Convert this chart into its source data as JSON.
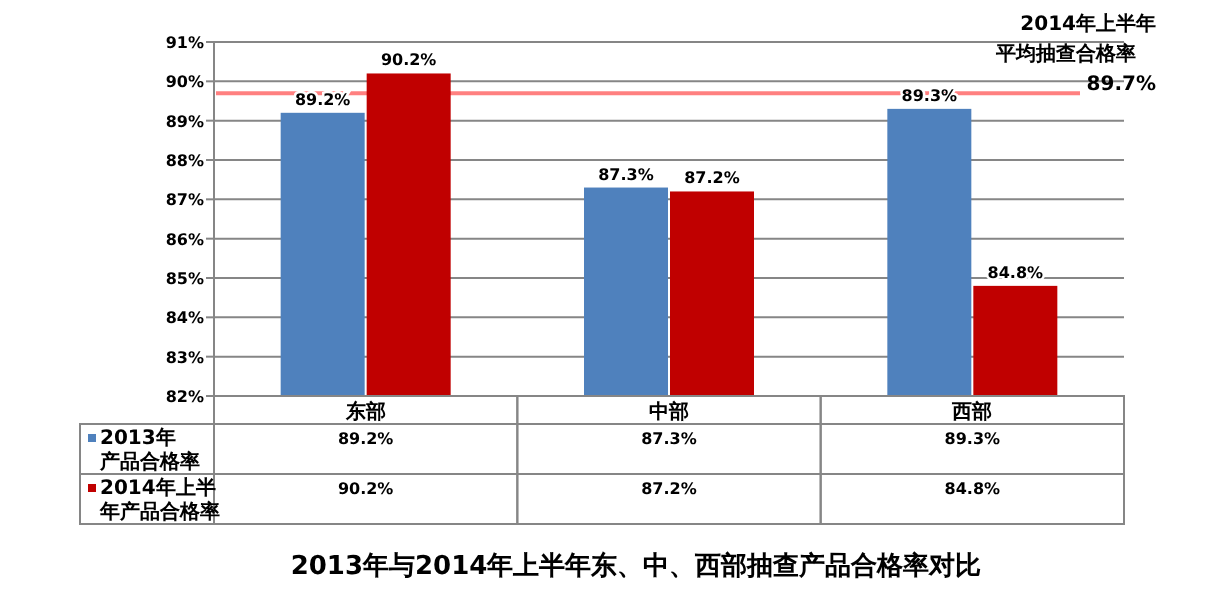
{
  "chart_data": {
    "type": "bar",
    "title": "2013年与2014年上半年东、中、西部抽查产品合格率对比",
    "categories": [
      "东部",
      "中部",
      "西部"
    ],
    "series": [
      {
        "name": "2013年产品合格率",
        "color": "#4f81bd",
        "values": [
          89.2,
          87.3,
          89.3
        ],
        "value_labels": [
          "89.2%",
          "87.3%",
          "89.3%"
        ]
      },
      {
        "name": "2014年上半年产品合格率",
        "color": "#c00000",
        "values": [
          90.2,
          87.2,
          84.8
        ],
        "value_labels": [
          "90.2%",
          "87.2%",
          "84.8%"
        ]
      }
    ],
    "ylim": [
      82,
      91
    ],
    "yticks": [
      {
        "value": 82,
        "label": "82%"
      },
      {
        "value": 83,
        "label": "83%"
      },
      {
        "value": 84,
        "label": "84%"
      },
      {
        "value": 85,
        "label": "85%"
      },
      {
        "value": 86,
        "label": "86%"
      },
      {
        "value": 87,
        "label": "87%"
      },
      {
        "value": 88,
        "label": "88%"
      },
      {
        "value": 89,
        "label": "89%"
      },
      {
        "value": 90,
        "label": "90%"
      },
      {
        "value": 91,
        "label": "91%"
      }
    ],
    "ref_lines": [
      {
        "axis": "y",
        "value": 89.7,
        "label": "2014年上半年平均抽查合格率 89.7%",
        "color": "#ff8080"
      }
    ],
    "grid": "y",
    "legend": "bottom"
  }
}
